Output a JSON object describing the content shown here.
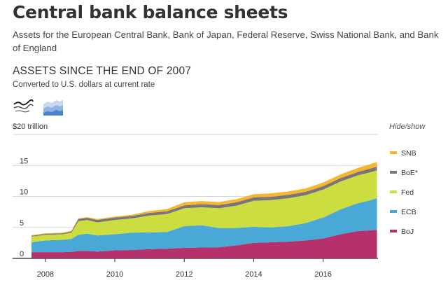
{
  "header": {
    "title": "Central bank balance sheets",
    "subtitle": "Assets for the European Central Bank, Bank of Japan, Federal Reserve, Swiss National Bank, and Bank of England"
  },
  "section": {
    "title": "ASSETS SINCE THE END OF 2007",
    "note": "Converted to U.S. dollars at current rate"
  },
  "controls": {
    "hide_show": "Hide/show",
    "lines_view_icon": "line-chart-icon",
    "stacked_view_icon": "stacked-area-icon"
  },
  "chart_data": {
    "type": "area",
    "stacked": true,
    "ylim": [
      0,
      20
    ],
    "y_ticks": [
      0,
      5,
      10,
      15
    ],
    "y_tick_labels": [
      "0",
      "5",
      "10",
      "15"
    ],
    "y_top_label": "$20 trillion",
    "x_ticks": [
      2008,
      2010,
      2012,
      2014,
      2016
    ],
    "x_range": [
      2007.58,
      2017.58
    ],
    "x": [
      2007.6,
      2008.0,
      2008.5,
      2008.75,
      2008.95,
      2009.2,
      2009.5,
      2010.0,
      2010.5,
      2011.0,
      2011.5,
      2012.0,
      2012.5,
      2013.0,
      2013.5,
      2014.0,
      2014.5,
      2015.0,
      2015.5,
      2016.0,
      2016.5,
      2017.0,
      2017.3,
      2017.55
    ],
    "series": [
      {
        "name": "BoJ",
        "color": "#b4316b",
        "values": [
          1.0,
          1.0,
          1.0,
          1.05,
          1.2,
          1.2,
          1.1,
          1.3,
          1.35,
          1.5,
          1.55,
          1.7,
          1.75,
          1.8,
          2.1,
          2.5,
          2.6,
          2.7,
          2.9,
          3.2,
          3.9,
          4.4,
          4.5,
          4.6
        ]
      },
      {
        "name": "ECB",
        "color": "#4aa8d6",
        "values": [
          1.6,
          1.9,
          2.0,
          2.1,
          2.6,
          2.8,
          2.6,
          2.6,
          2.8,
          2.7,
          2.7,
          3.5,
          3.6,
          3.1,
          2.8,
          2.6,
          2.4,
          2.5,
          2.8,
          3.4,
          4.0,
          4.5,
          4.8,
          5.1
        ]
      },
      {
        "name": "Fed",
        "color": "#cbdd3f",
        "values": [
          0.9,
          0.9,
          0.9,
          1.0,
          2.2,
          2.2,
          2.1,
          2.3,
          2.3,
          2.7,
          2.9,
          2.9,
          2.9,
          3.2,
          3.6,
          4.2,
          4.4,
          4.5,
          4.5,
          4.5,
          4.5,
          4.5,
          4.5,
          4.5
        ]
      },
      {
        "name": "BoE*",
        "color": "#7a7578",
        "values": [
          0.15,
          0.15,
          0.15,
          0.2,
          0.35,
          0.35,
          0.4,
          0.4,
          0.4,
          0.45,
          0.45,
          0.45,
          0.5,
          0.5,
          0.55,
          0.55,
          0.55,
          0.55,
          0.55,
          0.55,
          0.55,
          0.55,
          0.6,
          0.6
        ]
      },
      {
        "name": "SNB",
        "color": "#f5b72f",
        "values": [
          0.1,
          0.1,
          0.1,
          0.1,
          0.1,
          0.1,
          0.15,
          0.15,
          0.2,
          0.3,
          0.35,
          0.5,
          0.5,
          0.5,
          0.5,
          0.5,
          0.55,
          0.55,
          0.55,
          0.6,
          0.6,
          0.65,
          0.7,
          0.75
        ]
      }
    ],
    "legend_order": [
      "SNB",
      "BoE*",
      "Fed",
      "ECB",
      "BoJ"
    ],
    "grid": true,
    "legend_position": "right"
  }
}
